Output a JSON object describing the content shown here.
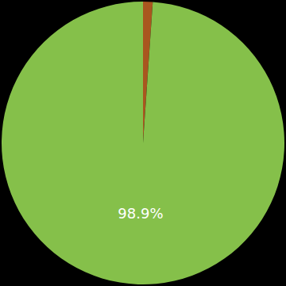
{
  "chart_data": {
    "type": "pie",
    "values": [
      1.1,
      98.9
    ],
    "value_labels": [
      null,
      "98.9%"
    ],
    "colors": [
      "#a9561f",
      "#85c04a"
    ]
  }
}
